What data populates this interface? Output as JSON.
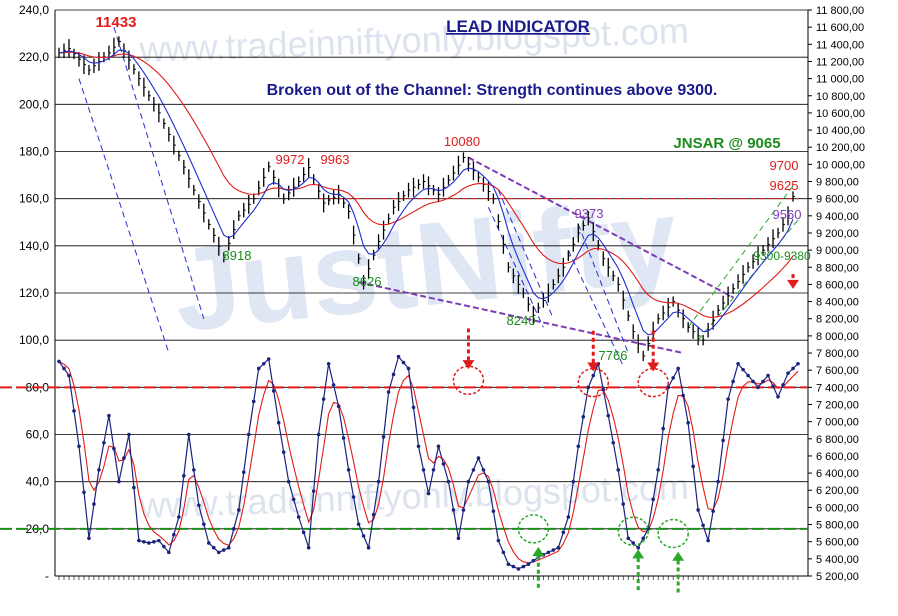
{
  "chart_data": {
    "type": "line",
    "title": "LEAD INDICATOR",
    "subtitle": "Broken out of the Channel: Strength continues above 9300.",
    "watermark": "www.tradeinniftyonly.blogspot.com",
    "watermark_logo": "JustNifty",
    "colors": {
      "price_bars": "#000000",
      "fast_ma": "#1f2fd0",
      "slow_ma": "#e01b1b",
      "oscillator": "#1a237e",
      "signal": "#e01b1b",
      "upper_level": "#e01b1b",
      "lower_level": "#1c8c1c",
      "channel": "#7d3cb5",
      "title": "#1a1a8c",
      "annot_red": "#e01b1b",
      "annot_green": "#1c8c1c",
      "annot_purple": "#7d3cb5"
    },
    "left_axis": {
      "ticks": [
        "240,0",
        "220,0",
        "200,0",
        "180,0",
        "160,0",
        "140,0",
        "120,0",
        "100,0",
        "80,0",
        "60,0",
        "40,0",
        "20,0",
        "-"
      ],
      "range": [
        0,
        240
      ]
    },
    "right_axis": {
      "ticks": [
        "11 800,00",
        "11 600,00",
        "11 400,00",
        "11 200,00",
        "11 000,00",
        "10 800,00",
        "10 600,00",
        "10 400,00",
        "10 200,00",
        "10 000,00",
        "9 800,00",
        "9 600,00",
        "9 400,00",
        "9 200,00",
        "9 000,00",
        "8 800,00",
        "8 600,00",
        "8 400,00",
        "8 200,00",
        "8 000,00",
        "7 800,00",
        "7 600,00",
        "7 400,00",
        "7 200,00",
        "7 000,00",
        "6 800,00",
        "6 600,00",
        "6 400,00",
        "6 200,00",
        "6 000,00",
        "5 800,00",
        "5 600,00",
        "5 400,00",
        "5 200,00"
      ],
      "range": [
        5200,
        11800
      ]
    },
    "reference_levels": {
      "upper": 80,
      "lower": 20,
      "resistance_price": 9600
    },
    "annotations": {
      "a11433": "11433",
      "a9972": "9972",
      "a9963": "9963",
      "a10080": "10080",
      "a9373": "9373",
      "a8918": "8918",
      "a8626": "8626",
      "a8240": "8240",
      "a7766": "7766",
      "jnsar": "JNSAR @ 9065",
      "a9700": "9700",
      "a9625": "9625",
      "a9560": "9560",
      "range9300": "9300-9380"
    },
    "price_swings": [
      [
        0,
        11300
      ],
      [
        2,
        11350
      ],
      [
        6,
        11100
      ],
      [
        10,
        11300
      ],
      [
        12,
        11433
      ],
      [
        16,
        11000
      ],
      [
        20,
        10600
      ],
      [
        24,
        10100
      ],
      [
        27,
        9700
      ],
      [
        30,
        9300
      ],
      [
        33,
        8918
      ],
      [
        36,
        9400
      ],
      [
        39,
        9600
      ],
      [
        42,
        9972
      ],
      [
        45,
        9600
      ],
      [
        48,
        9800
      ],
      [
        50,
        9963
      ],
      [
        53,
        9550
      ],
      [
        56,
        9650
      ],
      [
        58,
        9450
      ],
      [
        61,
        8626
      ],
      [
        64,
        9100
      ],
      [
        67,
        9500
      ],
      [
        70,
        9700
      ],
      [
        73,
        9800
      ],
      [
        76,
        9650
      ],
      [
        79,
        9900
      ],
      [
        81,
        10080
      ],
      [
        84,
        9850
      ],
      [
        87,
        9600
      ],
      [
        90,
        8800
      ],
      [
        93,
        8500
      ],
      [
        95,
        8240
      ],
      [
        98,
        8500
      ],
      [
        101,
        8800
      ],
      [
        104,
        9200
      ],
      [
        106,
        9373
      ],
      [
        109,
        8900
      ],
      [
        112,
        8600
      ],
      [
        115,
        8050
      ],
      [
        117,
        7766
      ],
      [
        120,
        8200
      ],
      [
        123,
        8400
      ],
      [
        126,
        8100
      ],
      [
        129,
        7950
      ],
      [
        132,
        8300
      ],
      [
        135,
        8550
      ],
      [
        138,
        8800
      ],
      [
        141,
        9000
      ],
      [
        144,
        9200
      ],
      [
        146,
        9400
      ],
      [
        147,
        9625
      ]
    ],
    "oscillator_swings": [
      [
        0,
        91
      ],
      [
        2,
        85
      ],
      [
        4,
        55
      ],
      [
        6,
        16
      ],
      [
        8,
        45
      ],
      [
        10,
        68
      ],
      [
        12,
        40
      ],
      [
        14,
        60
      ],
      [
        16,
        15
      ],
      [
        18,
        14
      ],
      [
        20,
        15
      ],
      [
        22,
        10
      ],
      [
        24,
        25
      ],
      [
        26,
        60
      ],
      [
        28,
        30
      ],
      [
        30,
        14
      ],
      [
        32,
        10
      ],
      [
        34,
        12
      ],
      [
        36,
        28
      ],
      [
        38,
        60
      ],
      [
        40,
        88
      ],
      [
        42,
        92
      ],
      [
        44,
        65
      ],
      [
        46,
        40
      ],
      [
        48,
        25
      ],
      [
        50,
        12
      ],
      [
        52,
        60
      ],
      [
        54,
        90
      ],
      [
        56,
        72
      ],
      [
        58,
        45
      ],
      [
        60,
        22
      ],
      [
        62,
        12
      ],
      [
        64,
        40
      ],
      [
        66,
        78
      ],
      [
        68,
        93
      ],
      [
        70,
        88
      ],
      [
        72,
        55
      ],
      [
        74,
        35
      ],
      [
        76,
        55
      ],
      [
        78,
        40
      ],
      [
        80,
        16
      ],
      [
        82,
        40
      ],
      [
        84,
        50
      ],
      [
        86,
        40
      ],
      [
        88,
        15
      ],
      [
        90,
        5
      ],
      [
        92,
        3
      ],
      [
        94,
        5
      ],
      [
        96,
        8
      ],
      [
        98,
        10
      ],
      [
        100,
        12
      ],
      [
        102,
        25
      ],
      [
        104,
        55
      ],
      [
        106,
        80
      ],
      [
        108,
        90
      ],
      [
        110,
        68
      ],
      [
        112,
        45
      ],
      [
        114,
        16
      ],
      [
        116,
        12
      ],
      [
        118,
        20
      ],
      [
        120,
        45
      ],
      [
        122,
        80
      ],
      [
        124,
        88
      ],
      [
        126,
        65
      ],
      [
        128,
        28
      ],
      [
        130,
        15
      ],
      [
        132,
        40
      ],
      [
        134,
        75
      ],
      [
        136,
        90
      ],
      [
        138,
        85
      ],
      [
        140,
        80
      ],
      [
        142,
        85
      ],
      [
        144,
        76
      ],
      [
        146,
        86
      ],
      [
        148,
        90
      ]
    ]
  }
}
